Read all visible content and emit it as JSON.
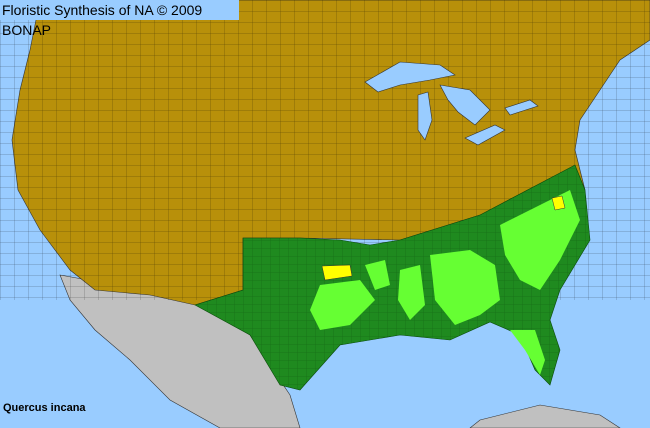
{
  "header": {
    "title": "Floristic Synthesis of NA © 2009 BONAP"
  },
  "species": {
    "name": "Quercus incana"
  },
  "colors": {
    "ocean": "#99ccff",
    "absent_region": "#b8900a",
    "present_state": "#1f8a1f",
    "present_county": "#66ff33",
    "county_present_rare": "#ffff00",
    "outside_area": "#c0c0c0"
  }
}
